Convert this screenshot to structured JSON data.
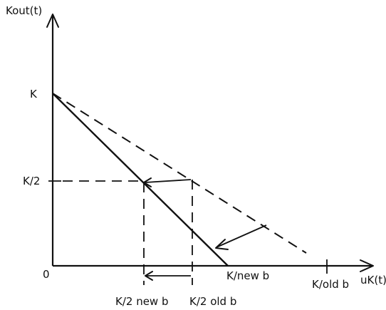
{
  "diagram": {
    "y_axis_label": "Kout(t)",
    "x_axis_label": "uK(t)",
    "origin_label": "0",
    "y_ticks": {
      "k": "K",
      "k_half": "K/2"
    },
    "x_ticks": {
      "k_new_b": "K/new b",
      "k_old_b": "K/old b",
      "k_half_new_b": "K/2 new b",
      "k_half_old_b": "K/2 old b"
    }
  }
}
